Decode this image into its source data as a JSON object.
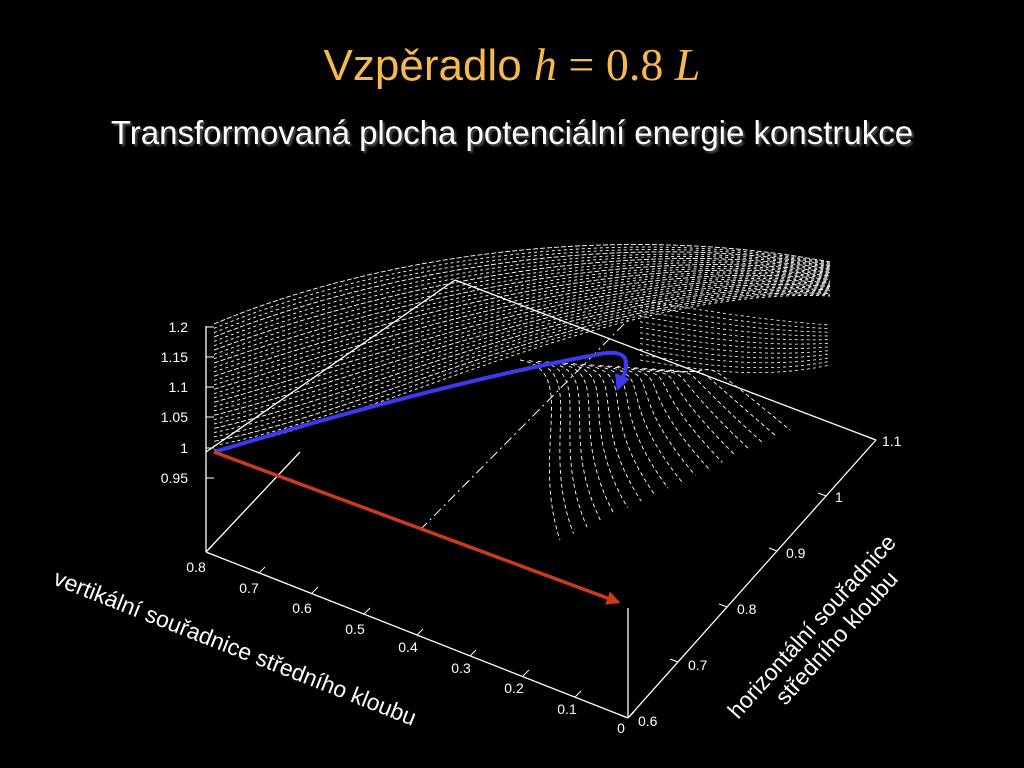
{
  "title": {
    "text": "Vzpěradlo",
    "math_var": "h",
    "math_eq": "=",
    "math_num": "0.8",
    "math_unit": "L",
    "color": "#f6b94c"
  },
  "subtitle": "Transformovaná plocha potenciální energie konstrukce",
  "chart_data": {
    "type": "surface-3d",
    "title": "",
    "z_axis": {
      "ticks": [
        "1.2",
        "1.15",
        "1.1",
        "1.05",
        "1",
        "0.95"
      ],
      "range": [
        0.95,
        1.2
      ]
    },
    "x_axis": {
      "label": "vertikální souřadnice středního kloubu",
      "ticks": [
        "0.8",
        "0.7",
        "0.6",
        "0.5",
        "0.4",
        "0.3",
        "0.2",
        "0.1",
        "0"
      ],
      "range": [
        0,
        0.8
      ]
    },
    "y_axis": {
      "label_lines": [
        "horizontální souřadnice",
        "středního kloubu"
      ],
      "ticks": [
        "0.6",
        "0.7",
        "0.8",
        "0.9",
        "1",
        "1.1"
      ],
      "range": [
        0.6,
        1.1
      ]
    },
    "surface_style": "white dashed contour lines",
    "paths": [
      {
        "color": "#3a3aee",
        "description": "equilibrium path rising along the surface and turning back"
      },
      {
        "color": "#cc3a1e",
        "description": "projection arrow on the base plane"
      }
    ],
    "grid": false,
    "legend": "none"
  }
}
